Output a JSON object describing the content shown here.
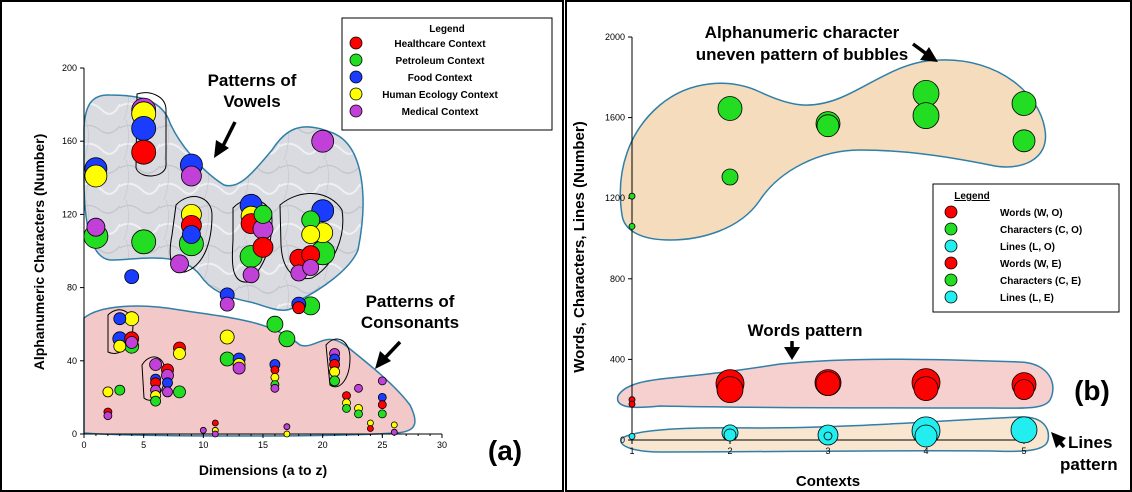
{
  "colors": {
    "red": "#ff0000",
    "green": "#22dd22",
    "blue": "#1a3cff",
    "yellow": "#ffff00",
    "purple": "#c040d8",
    "cyan": "#22eef0",
    "vowel_region": "#dcdde2",
    "consonant_region": "#f3c8c8",
    "char_region": "#f5dcbc",
    "words_region": "#f6cfcf",
    "lines_region": "#f8e6d0",
    "region_outline": "#2f7fa8"
  },
  "chart_data": [
    {
      "type": "scatter",
      "panel_label": "(a)",
      "xlabel": "Dimensions (a to z)",
      "ylabel": "Alphanumeric Characters (Number)",
      "xlim": [
        0,
        30
      ],
      "ylim": [
        0,
        200
      ],
      "xticks": [
        "0",
        "5",
        "10",
        "15",
        "20",
        "25",
        "30"
      ],
      "yticks": [
        "0",
        "40",
        "80",
        "120",
        "160",
        "200"
      ],
      "legend": {
        "title": "Legend",
        "position": "top-right",
        "entries": [
          {
            "name": "Healthcare Context",
            "color": "red"
          },
          {
            "name": "Petroleum Context",
            "color": "green"
          },
          {
            "name": "Food Context",
            "color": "blue"
          },
          {
            "name": "Human Ecology Context",
            "color": "yellow"
          },
          {
            "name": "Medical Context",
            "color": "purple"
          }
        ]
      },
      "annotations": [
        {
          "text": "Patterns of",
          "x": 8.5,
          "y": 178
        },
        {
          "text": "Vowels",
          "x": 8.5,
          "y": 164
        },
        {
          "text": "Patterns of",
          "x": 22.5,
          "y": 54
        },
        {
          "text": "Consonants",
          "x": 22.5,
          "y": 42
        }
      ],
      "points": [
        {
          "x": 1,
          "y": 145,
          "c": "blue",
          "s": 11
        },
        {
          "x": 1,
          "y": 141,
          "c": "yellow",
          "s": 11
        },
        {
          "x": 1,
          "y": 113,
          "c": "purple",
          "s": 9
        },
        {
          "x": 1,
          "y": 108,
          "c": "green",
          "s": 12
        },
        {
          "x": 5,
          "y": 177,
          "c": "purple",
          "s": 12
        },
        {
          "x": 5,
          "y": 175,
          "c": "yellow",
          "s": 12
        },
        {
          "x": 5,
          "y": 167,
          "c": "blue",
          "s": 12
        },
        {
          "x": 5,
          "y": 154,
          "c": "red",
          "s": 12
        },
        {
          "x": 5,
          "y": 105,
          "c": "green",
          "s": 12
        },
        {
          "x": 9,
          "y": 147,
          "c": "blue",
          "s": 11
        },
        {
          "x": 9,
          "y": 141,
          "c": "purple",
          "s": 10
        },
        {
          "x": 9,
          "y": 120,
          "c": "yellow",
          "s": 10
        },
        {
          "x": 9,
          "y": 114,
          "c": "red",
          "s": 10
        },
        {
          "x": 9,
          "y": 109,
          "c": "blue",
          "s": 9
        },
        {
          "x": 9,
          "y": 104,
          "c": "green",
          "s": 12
        },
        {
          "x": 8,
          "y": 93,
          "c": "purple",
          "s": 9
        },
        {
          "x": 14,
          "y": 125,
          "c": "blue",
          "s": 11
        },
        {
          "x": 14,
          "y": 119,
          "c": "yellow",
          "s": 10
        },
        {
          "x": 14,
          "y": 115,
          "c": "red",
          "s": 10
        },
        {
          "x": 15,
          "y": 120,
          "c": "green",
          "s": 9
        },
        {
          "x": 15,
          "y": 112,
          "c": "purple",
          "s": 10
        },
        {
          "x": 15,
          "y": 102,
          "c": "red",
          "s": 10
        },
        {
          "x": 14,
          "y": 97,
          "c": "green",
          "s": 11
        },
        {
          "x": 14,
          "y": 87,
          "c": "purple",
          "s": 8
        },
        {
          "x": 20,
          "y": 160,
          "c": "purple",
          "s": 11
        },
        {
          "x": 20,
          "y": 122,
          "c": "blue",
          "s": 11
        },
        {
          "x": 19,
          "y": 117,
          "c": "green",
          "s": 9
        },
        {
          "x": 19,
          "y": 109,
          "c": "yellow",
          "s": 9
        },
        {
          "x": 20,
          "y": 110,
          "c": "yellow",
          "s": 10
        },
        {
          "x": 18,
          "y": 96,
          "c": "red",
          "s": 9
        },
        {
          "x": 19,
          "y": 98,
          "c": "red",
          "s": 9
        },
        {
          "x": 20,
          "y": 99,
          "c": "green",
          "s": 12
        },
        {
          "x": 18,
          "y": 88,
          "c": "purple",
          "s": 8
        },
        {
          "x": 19,
          "y": 91,
          "c": "purple",
          "s": 8
        },
        {
          "x": 4,
          "y": 86,
          "c": "blue",
          "s": 7
        },
        {
          "x": 12,
          "y": 76,
          "c": "blue",
          "s": 7
        },
        {
          "x": 12,
          "y": 71,
          "c": "purple",
          "s": 7
        },
        {
          "x": 18,
          "y": 71,
          "c": "blue",
          "s": 7
        },
        {
          "x": 18,
          "y": 69,
          "c": "red",
          "s": 6
        },
        {
          "x": 19,
          "y": 70,
          "c": "green",
          "s": 9
        },
        {
          "x": 16,
          "y": 60,
          "c": "green",
          "s": 8
        },
        {
          "x": 17,
          "y": 52,
          "c": "green",
          "s": 8
        },
        {
          "x": 12,
          "y": 53,
          "c": "yellow",
          "s": 7
        },
        {
          "x": 3,
          "y": 63,
          "c": "blue",
          "s": 6
        },
        {
          "x": 4,
          "y": 63,
          "c": "yellow",
          "s": 7
        },
        {
          "x": 3,
          "y": 52,
          "c": "blue",
          "s": 7
        },
        {
          "x": 4,
          "y": 52,
          "c": "red",
          "s": 7
        },
        {
          "x": 3,
          "y": 48,
          "c": "yellow",
          "s": 6
        },
        {
          "x": 4,
          "y": 48,
          "c": "green",
          "s": 7
        },
        {
          "x": 4,
          "y": 50,
          "c": "purple",
          "s": 6
        },
        {
          "x": 8,
          "y": 47,
          "c": "red",
          "s": 6
        },
        {
          "x": 8,
          "y": 44,
          "c": "yellow",
          "s": 6
        },
        {
          "x": 12,
          "y": 41,
          "c": "green",
          "s": 7
        },
        {
          "x": 13,
          "y": 41,
          "c": "blue",
          "s": 6
        },
        {
          "x": 13,
          "y": 38,
          "c": "yellow",
          "s": 6
        },
        {
          "x": 13,
          "y": 36,
          "c": "purple",
          "s": 6
        },
        {
          "x": 6,
          "y": 38,
          "c": "purple",
          "s": 6
        },
        {
          "x": 6,
          "y": 30,
          "c": "blue",
          "s": 5
        },
        {
          "x": 6,
          "y": 28,
          "c": "red",
          "s": 5
        },
        {
          "x": 7,
          "y": 35,
          "c": "red",
          "s": 6
        },
        {
          "x": 7,
          "y": 32,
          "c": "purple",
          "s": 6
        },
        {
          "x": 7,
          "y": 28,
          "c": "blue",
          "s": 5
        },
        {
          "x": 6,
          "y": 24,
          "c": "purple",
          "s": 5
        },
        {
          "x": 6,
          "y": 21,
          "c": "yellow",
          "s": 5
        },
        {
          "x": 6,
          "y": 18,
          "c": "green",
          "s": 5
        },
        {
          "x": 7,
          "y": 23,
          "c": "purple",
          "s": 5
        },
        {
          "x": 8,
          "y": 23,
          "c": "green",
          "s": 6
        },
        {
          "x": 2,
          "y": 23,
          "c": "yellow",
          "s": 5
        },
        {
          "x": 3,
          "y": 24,
          "c": "green",
          "s": 5
        },
        {
          "x": 2,
          "y": 12,
          "c": "red",
          "s": 4
        },
        {
          "x": 2,
          "y": 10,
          "c": "purple",
          "s": 4
        },
        {
          "x": 16,
          "y": 38,
          "c": "blue",
          "s": 5
        },
        {
          "x": 16,
          "y": 35,
          "c": "red",
          "s": 4
        },
        {
          "x": 16,
          "y": 31,
          "c": "yellow",
          "s": 4
        },
        {
          "x": 16,
          "y": 27,
          "c": "green",
          "s": 4
        },
        {
          "x": 16,
          "y": 25,
          "c": "purple",
          "s": 4
        },
        {
          "x": 21,
          "y": 44,
          "c": "purple",
          "s": 5
        },
        {
          "x": 21,
          "y": 41,
          "c": "blue",
          "s": 5
        },
        {
          "x": 21,
          "y": 38,
          "c": "red",
          "s": 5
        },
        {
          "x": 21,
          "y": 34,
          "c": "yellow",
          "s": 5
        },
        {
          "x": 21,
          "y": 29,
          "c": "green",
          "s": 5
        },
        {
          "x": 23,
          "y": 25,
          "c": "purple",
          "s": 4
        },
        {
          "x": 22,
          "y": 21,
          "c": "red",
          "s": 4
        },
        {
          "x": 22,
          "y": 17,
          "c": "yellow",
          "s": 4
        },
        {
          "x": 22,
          "y": 14,
          "c": "green",
          "s": 4
        },
        {
          "x": 23,
          "y": 14,
          "c": "yellow",
          "s": 4
        },
        {
          "x": 23,
          "y": 11,
          "c": "green",
          "s": 4
        },
        {
          "x": 25,
          "y": 29,
          "c": "purple",
          "s": 4
        },
        {
          "x": 25,
          "y": 20,
          "c": "blue",
          "s": 4
        },
        {
          "x": 25,
          "y": 16,
          "c": "red",
          "s": 4
        },
        {
          "x": 25,
          "y": 11,
          "c": "green",
          "s": 4
        },
        {
          "x": 24,
          "y": 6,
          "c": "yellow",
          "s": 3
        },
        {
          "x": 24,
          "y": 3,
          "c": "red",
          "s": 3
        },
        {
          "x": 26,
          "y": 5,
          "c": "yellow",
          "s": 3
        },
        {
          "x": 26,
          "y": 1,
          "c": "purple",
          "s": 3
        },
        {
          "x": 10,
          "y": 2,
          "c": "purple",
          "s": 3
        },
        {
          "x": 11,
          "y": 6,
          "c": "red",
          "s": 3
        },
        {
          "x": 11,
          "y": 2,
          "c": "yellow",
          "s": 3
        },
        {
          "x": 11,
          "y": 0,
          "c": "purple",
          "s": 3
        },
        {
          "x": 17,
          "y": 4,
          "c": "purple",
          "s": 3
        },
        {
          "x": 17,
          "y": 0,
          "c": "yellow",
          "s": 3
        }
      ]
    },
    {
      "type": "scatter",
      "panel_label": "(b)",
      "xlabel": "Contexts",
      "ylabel": "Words, Characters, Lines (Number)",
      "xlim": [
        1,
        5
      ],
      "ylim": [
        0,
        2000
      ],
      "xticks": [
        "1",
        "2",
        "3",
        "4",
        "5"
      ],
      "yticks": [
        "0",
        "400",
        "800",
        "1200",
        "1600",
        "2000"
      ],
      "legend": {
        "title": "Legend",
        "position": "middle-right",
        "entries": [
          {
            "name": "Words (W, O)",
            "color": "red"
          },
          {
            "name": "Characters (C, O)",
            "color": "green"
          },
          {
            "name": "Lines (L, O)",
            "color": "cyan"
          },
          {
            "name": "Words (W, E)",
            "color": "red"
          },
          {
            "name": "Characters (C, E)",
            "color": "green"
          },
          {
            "name": "Lines (L, E)",
            "color": "cyan"
          }
        ]
      },
      "annotations": [
        {
          "text": "Alphanumeric character",
          "x": 3.0,
          "y": 1980
        },
        {
          "text": "uneven pattern of bubbles",
          "x": 3.0,
          "y": 1840
        },
        {
          "text": "Words pattern",
          "x": 2.6,
          "y": 520
        },
        {
          "text": "Lines",
          "x": 5.55,
          "y": -10
        },
        {
          "text": "pattern",
          "x": 5.55,
          "y": -140
        }
      ],
      "points": [
        {
          "x": 1,
          "y": 1210,
          "c": "green",
          "s": 3
        },
        {
          "x": 1,
          "y": 1060,
          "c": "green",
          "s": 3
        },
        {
          "x": 1,
          "y": 200,
          "c": "red",
          "s": 3
        },
        {
          "x": 1,
          "y": 178,
          "c": "red",
          "s": 3
        },
        {
          "x": 1,
          "y": 18,
          "c": "cyan",
          "s": 3
        },
        {
          "x": 2,
          "y": 1645,
          "c": "green",
          "s": 12
        },
        {
          "x": 2,
          "y": 1305,
          "c": "green",
          "s": 8
        },
        {
          "x": 2,
          "y": 250,
          "c": "red",
          "s": 13
        },
        {
          "x": 2,
          "y": 280,
          "c": "red",
          "s": 14
        },
        {
          "x": 2,
          "y": 35,
          "c": "cyan",
          "s": 8
        },
        {
          "x": 2,
          "y": 25,
          "c": "cyan",
          "s": 6
        },
        {
          "x": 3,
          "y": 1570,
          "c": "green",
          "s": 12
        },
        {
          "x": 3,
          "y": 1560,
          "c": "green",
          "s": 11
        },
        {
          "x": 3,
          "y": 285,
          "c": "red",
          "s": 13
        },
        {
          "x": 3,
          "y": 280,
          "c": "red",
          "s": 12
        },
        {
          "x": 3,
          "y": 25,
          "c": "cyan",
          "s": 10
        },
        {
          "x": 3,
          "y": 20,
          "c": "cyan",
          "s": 4
        },
        {
          "x": 4,
          "y": 1720,
          "c": "green",
          "s": 13
        },
        {
          "x": 4,
          "y": 1610,
          "c": "green",
          "s": 13
        },
        {
          "x": 4,
          "y": 285,
          "c": "red",
          "s": 14
        },
        {
          "x": 4,
          "y": 255,
          "c": "red",
          "s": 12
        },
        {
          "x": 4,
          "y": 45,
          "c": "cyan",
          "s": 14
        },
        {
          "x": 4,
          "y": 20,
          "c": "cyan",
          "s": 11
        },
        {
          "x": 5,
          "y": 1670,
          "c": "green",
          "s": 12
        },
        {
          "x": 5,
          "y": 1485,
          "c": "green",
          "s": 11
        },
        {
          "x": 5,
          "y": 275,
          "c": "red",
          "s": 12
        },
        {
          "x": 5,
          "y": 250,
          "c": "red",
          "s": 10
        },
        {
          "x": 5,
          "y": 50,
          "c": "cyan",
          "s": 13
        }
      ]
    }
  ]
}
